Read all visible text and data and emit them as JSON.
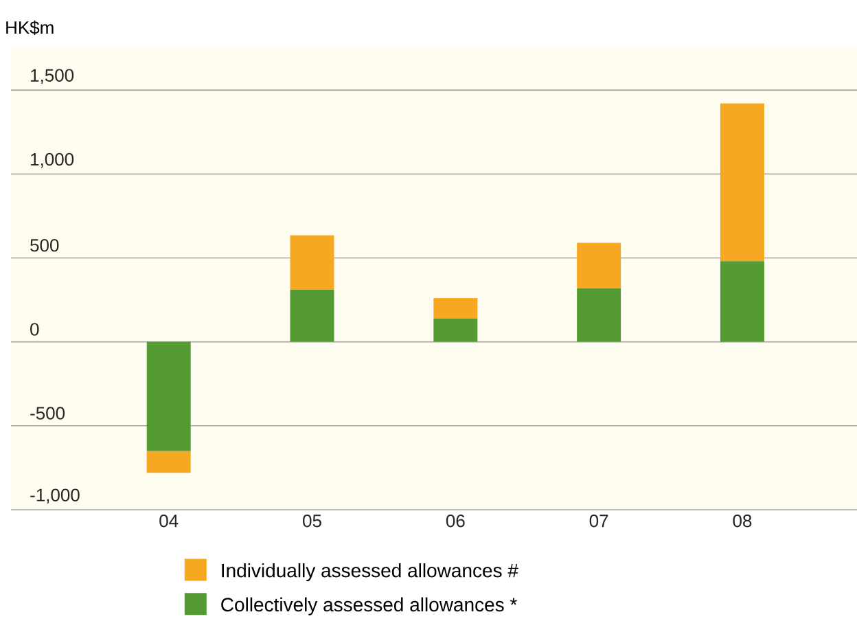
{
  "chart_data": {
    "type": "bar",
    "stacked": true,
    "ylabel": "HK$m",
    "categories": [
      "04",
      "05",
      "06",
      "07",
      "08"
    ],
    "series": [
      {
        "name": "Collectively assessed allowances *",
        "color": "#559b33",
        "values": [
          -650,
          310,
          140,
          320,
          480
        ]
      },
      {
        "name": "Individually assessed allowances #",
        "color": "#f7a823",
        "values": [
          -130,
          325,
          120,
          270,
          940
        ]
      }
    ],
    "ylim": [
      -1000,
      1750
    ],
    "yticks": [
      {
        "value": -1000,
        "label": "-1,000"
      },
      {
        "value": -500,
        "label": "-500"
      },
      0,
      {
        "value": 500,
        "label": "500"
      },
      {
        "value": 1000,
        "label": "1,000"
      },
      {
        "value": 1500,
        "label": "1,500"
      }
    ],
    "grid": "y",
    "legend": "bottom"
  }
}
